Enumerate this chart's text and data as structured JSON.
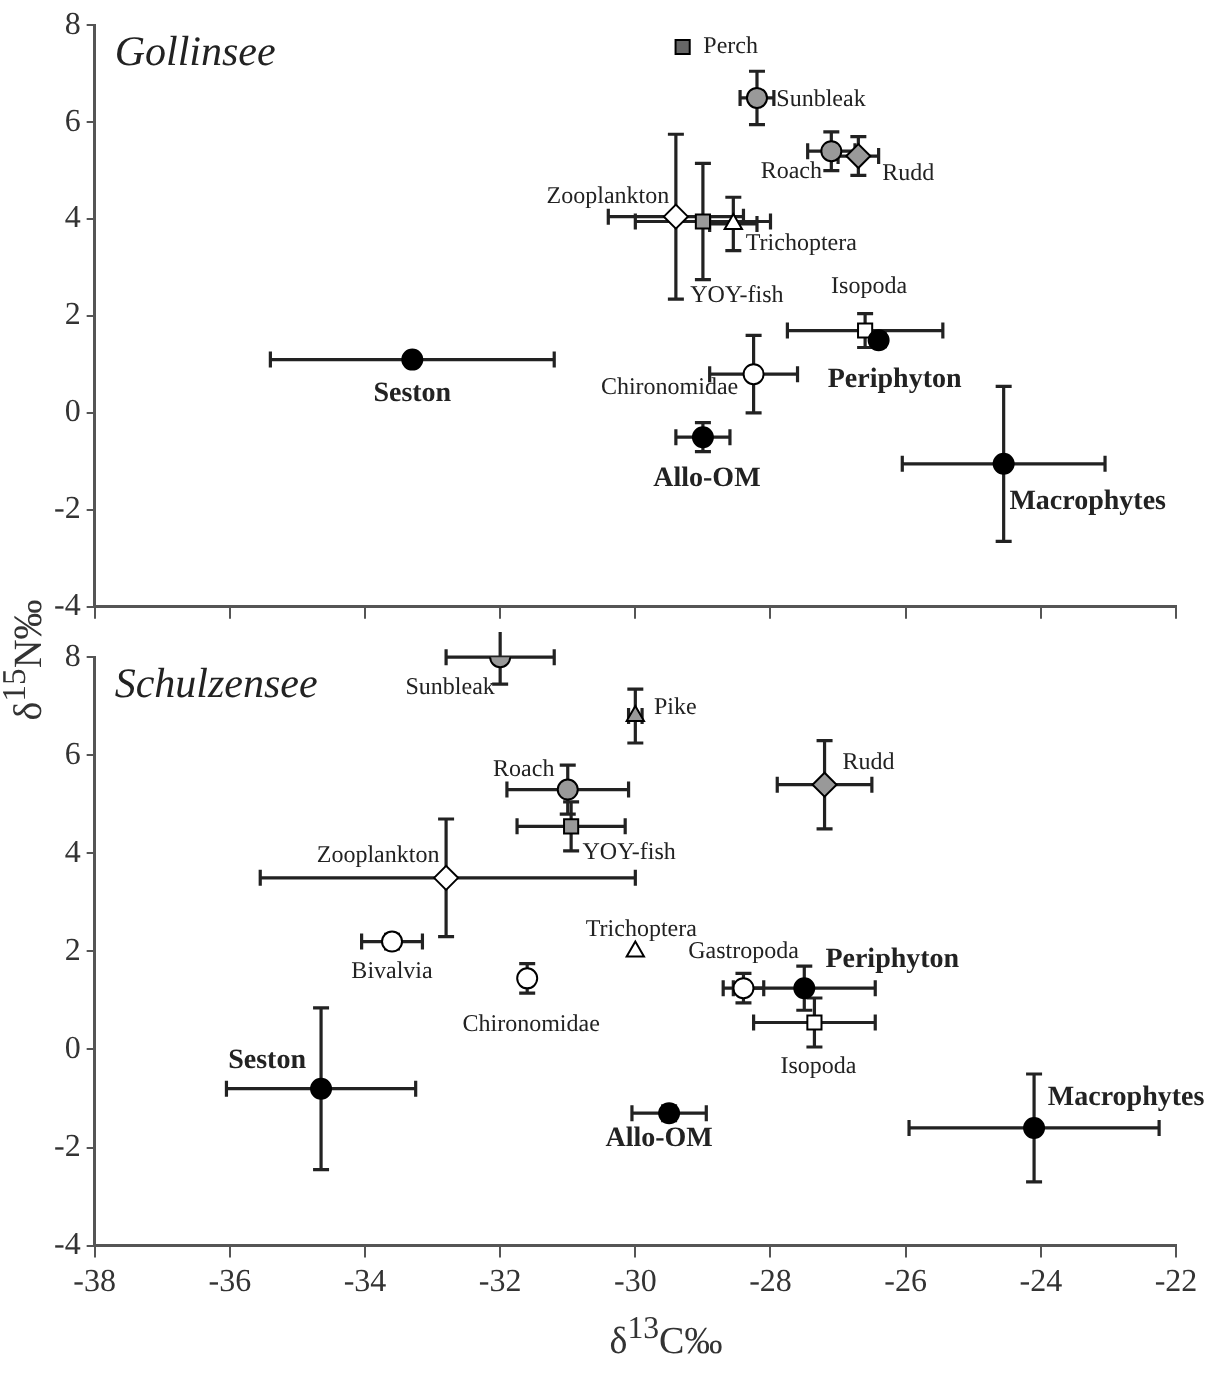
{
  "chart_data": [
    {
      "type": "scatter",
      "title": "Gollinsee",
      "ylabel": "δ$^{15}$N‰",
      "xlim": [
        -38,
        -22
      ],
      "xticks": [
        -38,
        -36,
        -34,
        -32,
        -30,
        -28,
        -26,
        -24,
        -22
      ],
      "ylim": [
        -4,
        8
      ],
      "yticks": [
        -4,
        -2,
        0,
        2,
        4,
        6,
        8
      ],
      "tick_labels": "y",
      "series": [
        {
          "color": "#000000",
          "marker": "circle",
          "x": [
            -33.3,
            -26.4,
            -29.0,
            -24.55
          ],
          "values": [
            1.1,
            1.5,
            -0.5,
            -1.05
          ],
          "xerrors": [
            2.1,
            0.1,
            0.4,
            1.5
          ],
          "errors": [
            null,
            0.1,
            0.3,
            1.6
          ]
        },
        {
          "color": "#999999",
          "marker": "circle",
          "x": [
            -28.2,
            -27.1
          ],
          "values": [
            6.5,
            5.4
          ],
          "xerrors": [
            0.25,
            0.35
          ],
          "errors": [
            0.55,
            0.4
          ]
        },
        {
          "color": "#999999",
          "marker": "diamond",
          "x": [
            -26.7
          ],
          "values": [
            5.3
          ],
          "xerrors": [
            0.3
          ],
          "errors": [
            0.4
          ]
        },
        {
          "color": "#666666",
          "marker": "square",
          "x": [
            -29.3
          ],
          "values": [
            7.55
          ],
          "xerrors": [
            null
          ],
          "errors": [
            null
          ]
        },
        {
          "color": "#ffffff",
          "marker": "diamond",
          "x": [
            -29.4
          ],
          "values": [
            4.05
          ],
          "xerrors": [
            1.0
          ],
          "errors": [
            1.7
          ]
        },
        {
          "color": "#999999",
          "marker": "square",
          "x": [
            -29.0
          ],
          "values": [
            3.95
          ],
          "xerrors": [
            1.0
          ],
          "errors": [
            1.2
          ]
        },
        {
          "color": "#ffffff",
          "marker": "triangle",
          "x": [
            -28.55
          ],
          "values": [
            3.9
          ],
          "xerrors": [
            0.35
          ],
          "errors": [
            0.55
          ]
        },
        {
          "color": "#ffffff",
          "marker": "square",
          "x": [
            -26.6
          ],
          "values": [
            1.7
          ],
          "xerrors": [
            1.15
          ],
          "errors": [
            0.35
          ]
        },
        {
          "color": "#ffffff",
          "marker": "circle",
          "x": [
            -28.25
          ],
          "values": [
            0.8
          ],
          "xerrors": [
            0.65
          ],
          "errors": [
            0.8
          ]
        }
      ],
      "annotations": [
        {
          "text": "Perch",
          "x": -29.3,
          "y": 7.55
        },
        {
          "text": "Sunbleak",
          "x": -28.2,
          "y": 6.5
        },
        {
          "text": "Roach",
          "x": -27.1,
          "y": 5.4
        },
        {
          "text": "Rudd",
          "x": -26.7,
          "y": 5.3
        },
        {
          "text": "Zooplankton",
          "x": -29.4,
          "y": 4.05
        },
        {
          "text": "Trichoptera",
          "x": -28.55,
          "y": 3.9
        },
        {
          "text": "YOY-fish",
          "x": -29.0,
          "y": 3.95
        },
        {
          "text": "Isopoda",
          "x": -26.6,
          "y": 1.7
        },
        {
          "text": "Periphyton",
          "x": -26.4,
          "y": 1.5
        },
        {
          "text": "Seston",
          "x": -33.3,
          "y": 1.1
        },
        {
          "text": "Chironomidae",
          "x": -28.25,
          "y": 0.8
        },
        {
          "text": "Allo-OM",
          "x": -29.0,
          "y": -0.5
        },
        {
          "text": "Macrophytes",
          "x": -24.55,
          "y": -1.05
        }
      ]
    },
    {
      "type": "scatter",
      "title": "Schulzensee",
      "xlabel": "δ$^{13}$C‰",
      "xlim": [
        -38,
        -22
      ],
      "xticks": [
        -38,
        -36,
        -34,
        -32,
        -30,
        -28,
        -26,
        -24,
        -22
      ],
      "ylim": [
        -4,
        8
      ],
      "yticks": [
        -4,
        -2,
        0,
        2,
        4,
        6,
        8
      ],
      "series": [
        {
          "color": "#000000",
          "marker": "circle",
          "x": [
            -34.65,
            -27.5,
            -29.5,
            -24.1
          ],
          "values": [
            -0.8,
            1.25,
            -1.3,
            -1.6
          ],
          "xerrors": [
            1.4,
            1.05,
            0.55,
            1.85
          ],
          "errors": [
            1.65,
            0.45,
            0.15,
            1.1
          ]
        },
        {
          "color": "#999999",
          "marker": "circle",
          "x": [
            -32.0,
            -31.0
          ],
          "values": [
            8.0,
            5.3
          ],
          "xerrors": [
            0.8,
            0.9
          ],
          "errors": [
            0.55,
            0.5
          ]
        },
        {
          "color": "#999999",
          "marker": "diamond",
          "x": [
            -27.2
          ],
          "values": [
            5.4
          ],
          "xerrors": [
            0.7
          ],
          "errors": [
            0.9
          ]
        },
        {
          "color": "#999999",
          "marker": "triangle",
          "x": [
            -30.0
          ],
          "values": [
            6.8
          ],
          "xerrors": [
            0.1
          ],
          "errors": [
            0.55
          ]
        },
        {
          "color": "#999999",
          "marker": "square",
          "x": [
            -30.95
          ],
          "values": [
            4.55
          ],
          "xerrors": [
            0.8
          ],
          "errors": [
            0.5
          ]
        },
        {
          "color": "#ffffff",
          "marker": "diamond",
          "x": [
            -32.8
          ],
          "values": [
            3.5
          ],
          "xerrors": [
            [
              -35.55,
              -30.0
            ]
          ],
          "errors": [
            1.2
          ]
        },
        {
          "color": "#ffffff",
          "marker": "circle",
          "x": [
            -33.6,
            -31.6,
            -28.4
          ],
          "values": [
            2.2,
            1.45,
            1.25
          ],
          "xerrors": [
            0.45,
            null,
            0.3
          ],
          "errors": [
            0.15,
            0.3,
            0.3
          ]
        },
        {
          "color": "#ffffff",
          "marker": "triangle",
          "x": [
            -30.0
          ],
          "values": [
            2.0
          ],
          "xerrors": [
            null
          ],
          "errors": [
            null
          ]
        },
        {
          "color": "#ffffff",
          "marker": "square",
          "x": [
            -27.35
          ],
          "values": [
            0.55
          ],
          "xerrors": [
            0.9
          ],
          "errors": [
            0.5
          ]
        }
      ],
      "annotations": [
        {
          "text": "Sunbleak",
          "x": -32.0,
          "y": 8.0
        },
        {
          "text": "Pike",
          "x": -30.0,
          "y": 6.8
        },
        {
          "text": "Roach",
          "x": -31.0,
          "y": 5.3
        },
        {
          "text": "Rudd",
          "x": -27.2,
          "y": 5.4
        },
        {
          "text": "YOY-fish",
          "x": -30.95,
          "y": 4.55
        },
        {
          "text": "Zooplankton",
          "x": -32.8,
          "y": 3.5
        },
        {
          "text": "Trichoptera",
          "x": -30.0,
          "y": 2.0
        },
        {
          "text": "Bivalvia",
          "x": -33.6,
          "y": 2.2
        },
        {
          "text": "Chironomidae",
          "x": -31.6,
          "y": 1.45
        },
        {
          "text": "Gastropoda",
          "x": -28.4,
          "y": 1.25
        },
        {
          "text": "Periphyton",
          "x": -27.5,
          "y": 1.25
        },
        {
          "text": "Isopoda",
          "x": -27.35,
          "y": 0.55
        },
        {
          "text": "Seston",
          "x": -34.65,
          "y": -0.8
        },
        {
          "text": "Allo-OM",
          "x": -29.5,
          "y": -1.3
        },
        {
          "text": "Macrophytes",
          "x": -24.1,
          "y": -1.6
        }
      ]
    }
  ]
}
